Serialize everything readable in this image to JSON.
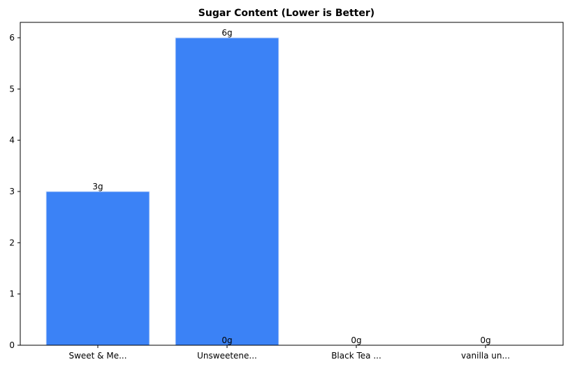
{
  "chart_data": {
    "type": "bar",
    "title": "Sugar Content (Lower is Better)",
    "xlabel": "",
    "ylabel": "",
    "categories": [
      "Sweet & Me...",
      "Unsweetene...",
      "Black Tea ...",
      "vanilla un..."
    ],
    "values": [
      3,
      6,
      0,
      0
    ],
    "data_labels": [
      "3g",
      "6g",
      "0g",
      "0g"
    ],
    "extra_label": "0g",
    "ylim": [
      0,
      6.3
    ],
    "yticks": [
      0,
      1,
      2,
      3,
      4,
      5,
      6
    ],
    "grid": false,
    "bar_color": "#3b82f6",
    "bar_edge_color": "#dbe7fb"
  }
}
